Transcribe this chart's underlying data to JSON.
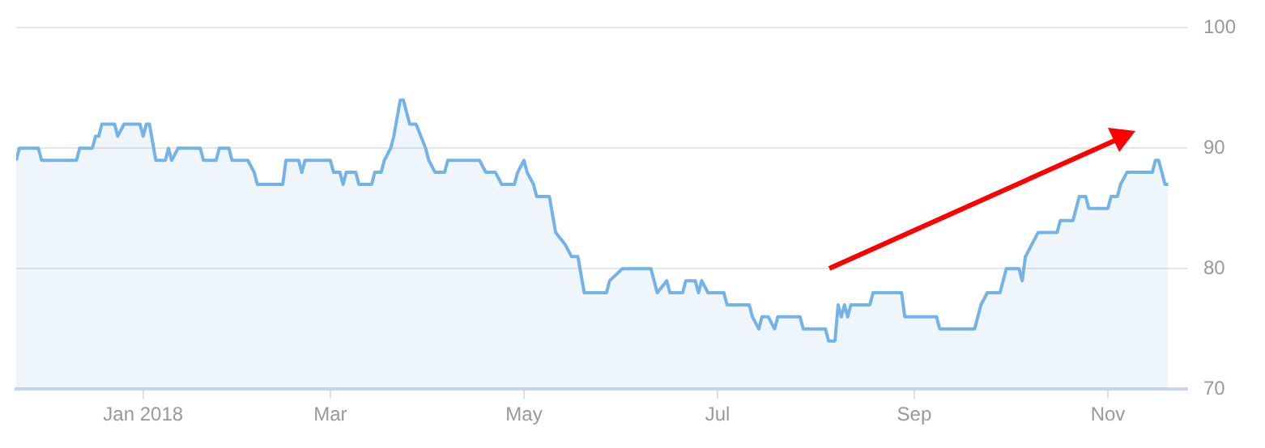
{
  "chart_data": {
    "type": "area",
    "x": [
      "2017-11-22",
      "2017-11-23",
      "2017-11-29",
      "2017-11-30",
      "2017-12-11",
      "2017-12-12",
      "2017-12-16",
      "2017-12-17",
      "2017-12-18",
      "2017-12-19",
      "2017-12-23",
      "2017-12-24",
      "2017-12-26",
      "2017-12-31",
      "2018-01-01",
      "2018-01-02",
      "2018-01-03",
      "2018-01-05",
      "2018-01-08",
      "2018-01-09",
      "2018-01-10",
      "2018-01-12",
      "2018-01-19",
      "2018-01-20",
      "2018-01-24",
      "2018-01-25",
      "2018-01-28",
      "2018-01-29",
      "2018-02-03",
      "2018-02-05",
      "2018-02-06",
      "2018-02-14",
      "2018-02-15",
      "2018-02-19",
      "2018-02-20",
      "2018-02-21",
      "2018-03-01",
      "2018-03-02",
      "2018-03-04",
      "2018-03-05",
      "2018-03-06",
      "2018-03-09",
      "2018-03-10",
      "2018-03-14",
      "2018-03-15",
      "2018-03-17",
      "2018-03-18",
      "2018-03-20",
      "2018-03-21",
      "2018-03-23",
      "2018-03-24",
      "2018-03-26",
      "2018-03-28",
      "2018-03-31",
      "2018-04-01",
      "2018-04-03",
      "2018-04-06",
      "2018-04-07",
      "2018-04-17",
      "2018-04-19",
      "2018-04-22",
      "2018-04-24",
      "2018-04-28",
      "2018-04-29",
      "2018-05-01",
      "2018-05-02",
      "2018-05-04",
      "2018-05-05",
      "2018-05-09",
      "2018-05-11",
      "2018-05-14",
      "2018-05-16",
      "2018-05-18",
      "2018-05-20",
      "2018-05-27",
      "2018-05-28",
      "2018-06-01",
      "2018-06-10",
      "2018-06-12",
      "2018-06-15",
      "2018-06-16",
      "2018-06-20",
      "2018-06-21",
      "2018-06-24",
      "2018-06-25",
      "2018-06-26",
      "2018-06-28",
      "2018-07-03",
      "2018-07-04",
      "2018-07-11",
      "2018-07-12",
      "2018-07-14",
      "2018-07-15",
      "2018-07-17",
      "2018-07-19",
      "2018-07-20",
      "2018-07-27",
      "2018-07-28",
      "2018-08-04",
      "2018-08-05",
      "2018-08-07",
      "2018-08-08",
      "2018-08-09",
      "2018-08-10",
      "2018-08-11",
      "2018-08-12",
      "2018-08-18",
      "2018-08-19",
      "2018-08-28",
      "2018-08-29",
      "2018-09-08",
      "2018-09-09",
      "2018-09-20",
      "2018-09-22",
      "2018-09-24",
      "2018-09-28",
      "2018-09-30",
      "2018-10-04",
      "2018-10-05",
      "2018-10-06",
      "2018-10-08",
      "2018-10-10",
      "2018-10-16",
      "2018-10-17",
      "2018-10-21",
      "2018-10-23",
      "2018-10-25",
      "2018-10-26",
      "2018-11-01",
      "2018-11-02",
      "2018-11-04",
      "2018-11-05",
      "2018-11-07",
      "2018-11-15",
      "2018-11-16",
      "2018-11-17",
      "2018-11-19",
      "2018-11-20"
    ],
    "series": [
      {
        "color": "#74b3e8",
        "values": [
          89,
          90,
          90,
          89,
          89,
          90,
          90,
          91,
          91,
          92,
          92,
          91,
          92,
          92,
          91,
          92,
          92,
          89,
          89,
          90,
          89,
          90,
          90,
          89,
          89,
          90,
          90,
          89,
          89,
          88,
          87,
          87,
          89,
          89,
          88,
          89,
          89,
          88,
          88,
          87,
          88,
          88,
          87,
          87,
          88,
          88,
          89,
          90,
          91,
          94,
          94,
          92,
          92,
          90,
          89,
          88,
          88,
          89,
          89,
          88,
          88,
          87,
          87,
          88,
          89,
          88,
          87,
          86,
          86,
          83,
          82,
          81,
          81,
          78,
          78,
          79,
          80,
          80,
          78,
          79,
          78,
          78,
          79,
          79,
          78,
          79,
          78,
          78,
          77,
          77,
          76,
          75,
          76,
          76,
          75,
          76,
          76,
          75,
          75,
          74,
          74,
          77,
          76,
          77,
          76,
          77,
          77,
          78,
          78,
          76,
          76,
          75,
          75,
          77,
          78,
          78,
          80,
          80,
          79,
          81,
          82,
          83,
          83,
          84,
          84,
          86,
          86,
          85,
          85,
          86,
          86,
          87,
          88,
          88,
          89,
          89,
          87,
          87
        ]
      }
    ],
    "xlim": [
      "2017-11-22",
      "2018-11-26"
    ],
    "xticks": [
      {
        "value": "2018-01-01",
        "label": "Jan 2018"
      },
      {
        "value": "2018-03-01",
        "label": "Mar"
      },
      {
        "value": "2018-05-01",
        "label": "May"
      },
      {
        "value": "2018-07-01",
        "label": "Jul"
      },
      {
        "value": "2018-09-01",
        "label": "Sep"
      },
      {
        "value": "2018-11-01",
        "label": "Nov"
      }
    ],
    "ylim": [
      70,
      100
    ],
    "yticks": [
      70,
      80,
      90,
      100
    ],
    "grid": "y"
  }
}
